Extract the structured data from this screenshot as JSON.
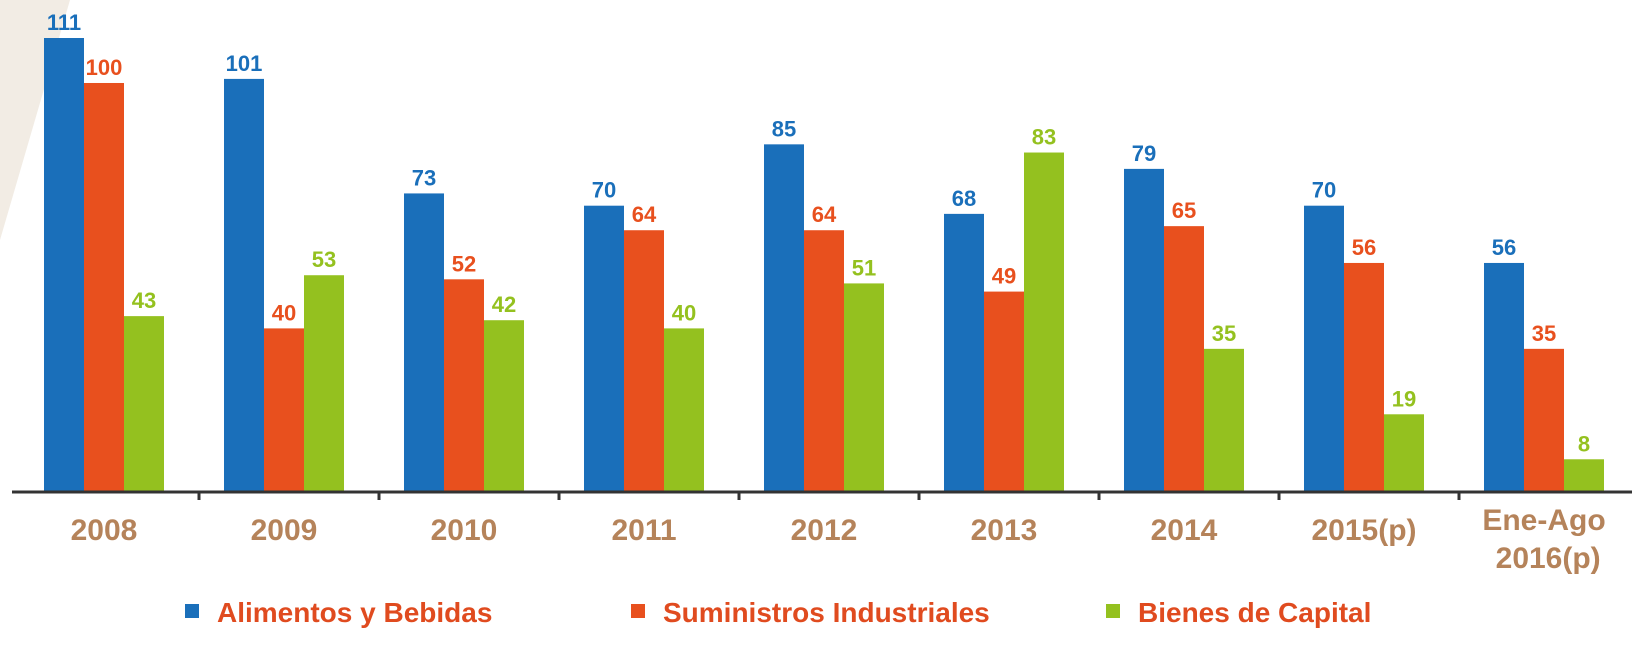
{
  "chart_data": {
    "type": "bar",
    "categories": [
      "2008",
      "2009",
      "2010",
      "2011",
      "2012",
      "2013",
      "2014",
      "2015(p)",
      "Ene-Ago 2016(p)"
    ],
    "series": [
      {
        "name": "Alimentos y Bebidas",
        "color": "#1a6fba",
        "values": [
          111,
          101,
          73,
          70,
          85,
          68,
          79,
          70,
          56
        ]
      },
      {
        "name": "Suministros Industriales",
        "color": "#e8501e",
        "values": [
          100,
          40,
          52,
          64,
          64,
          49,
          65,
          56,
          35
        ]
      },
      {
        "name": "Bienes de Capital",
        "color": "#94c11f",
        "values": [
          43,
          53,
          42,
          40,
          51,
          83,
          35,
          19,
          8
        ]
      }
    ]
  }
}
